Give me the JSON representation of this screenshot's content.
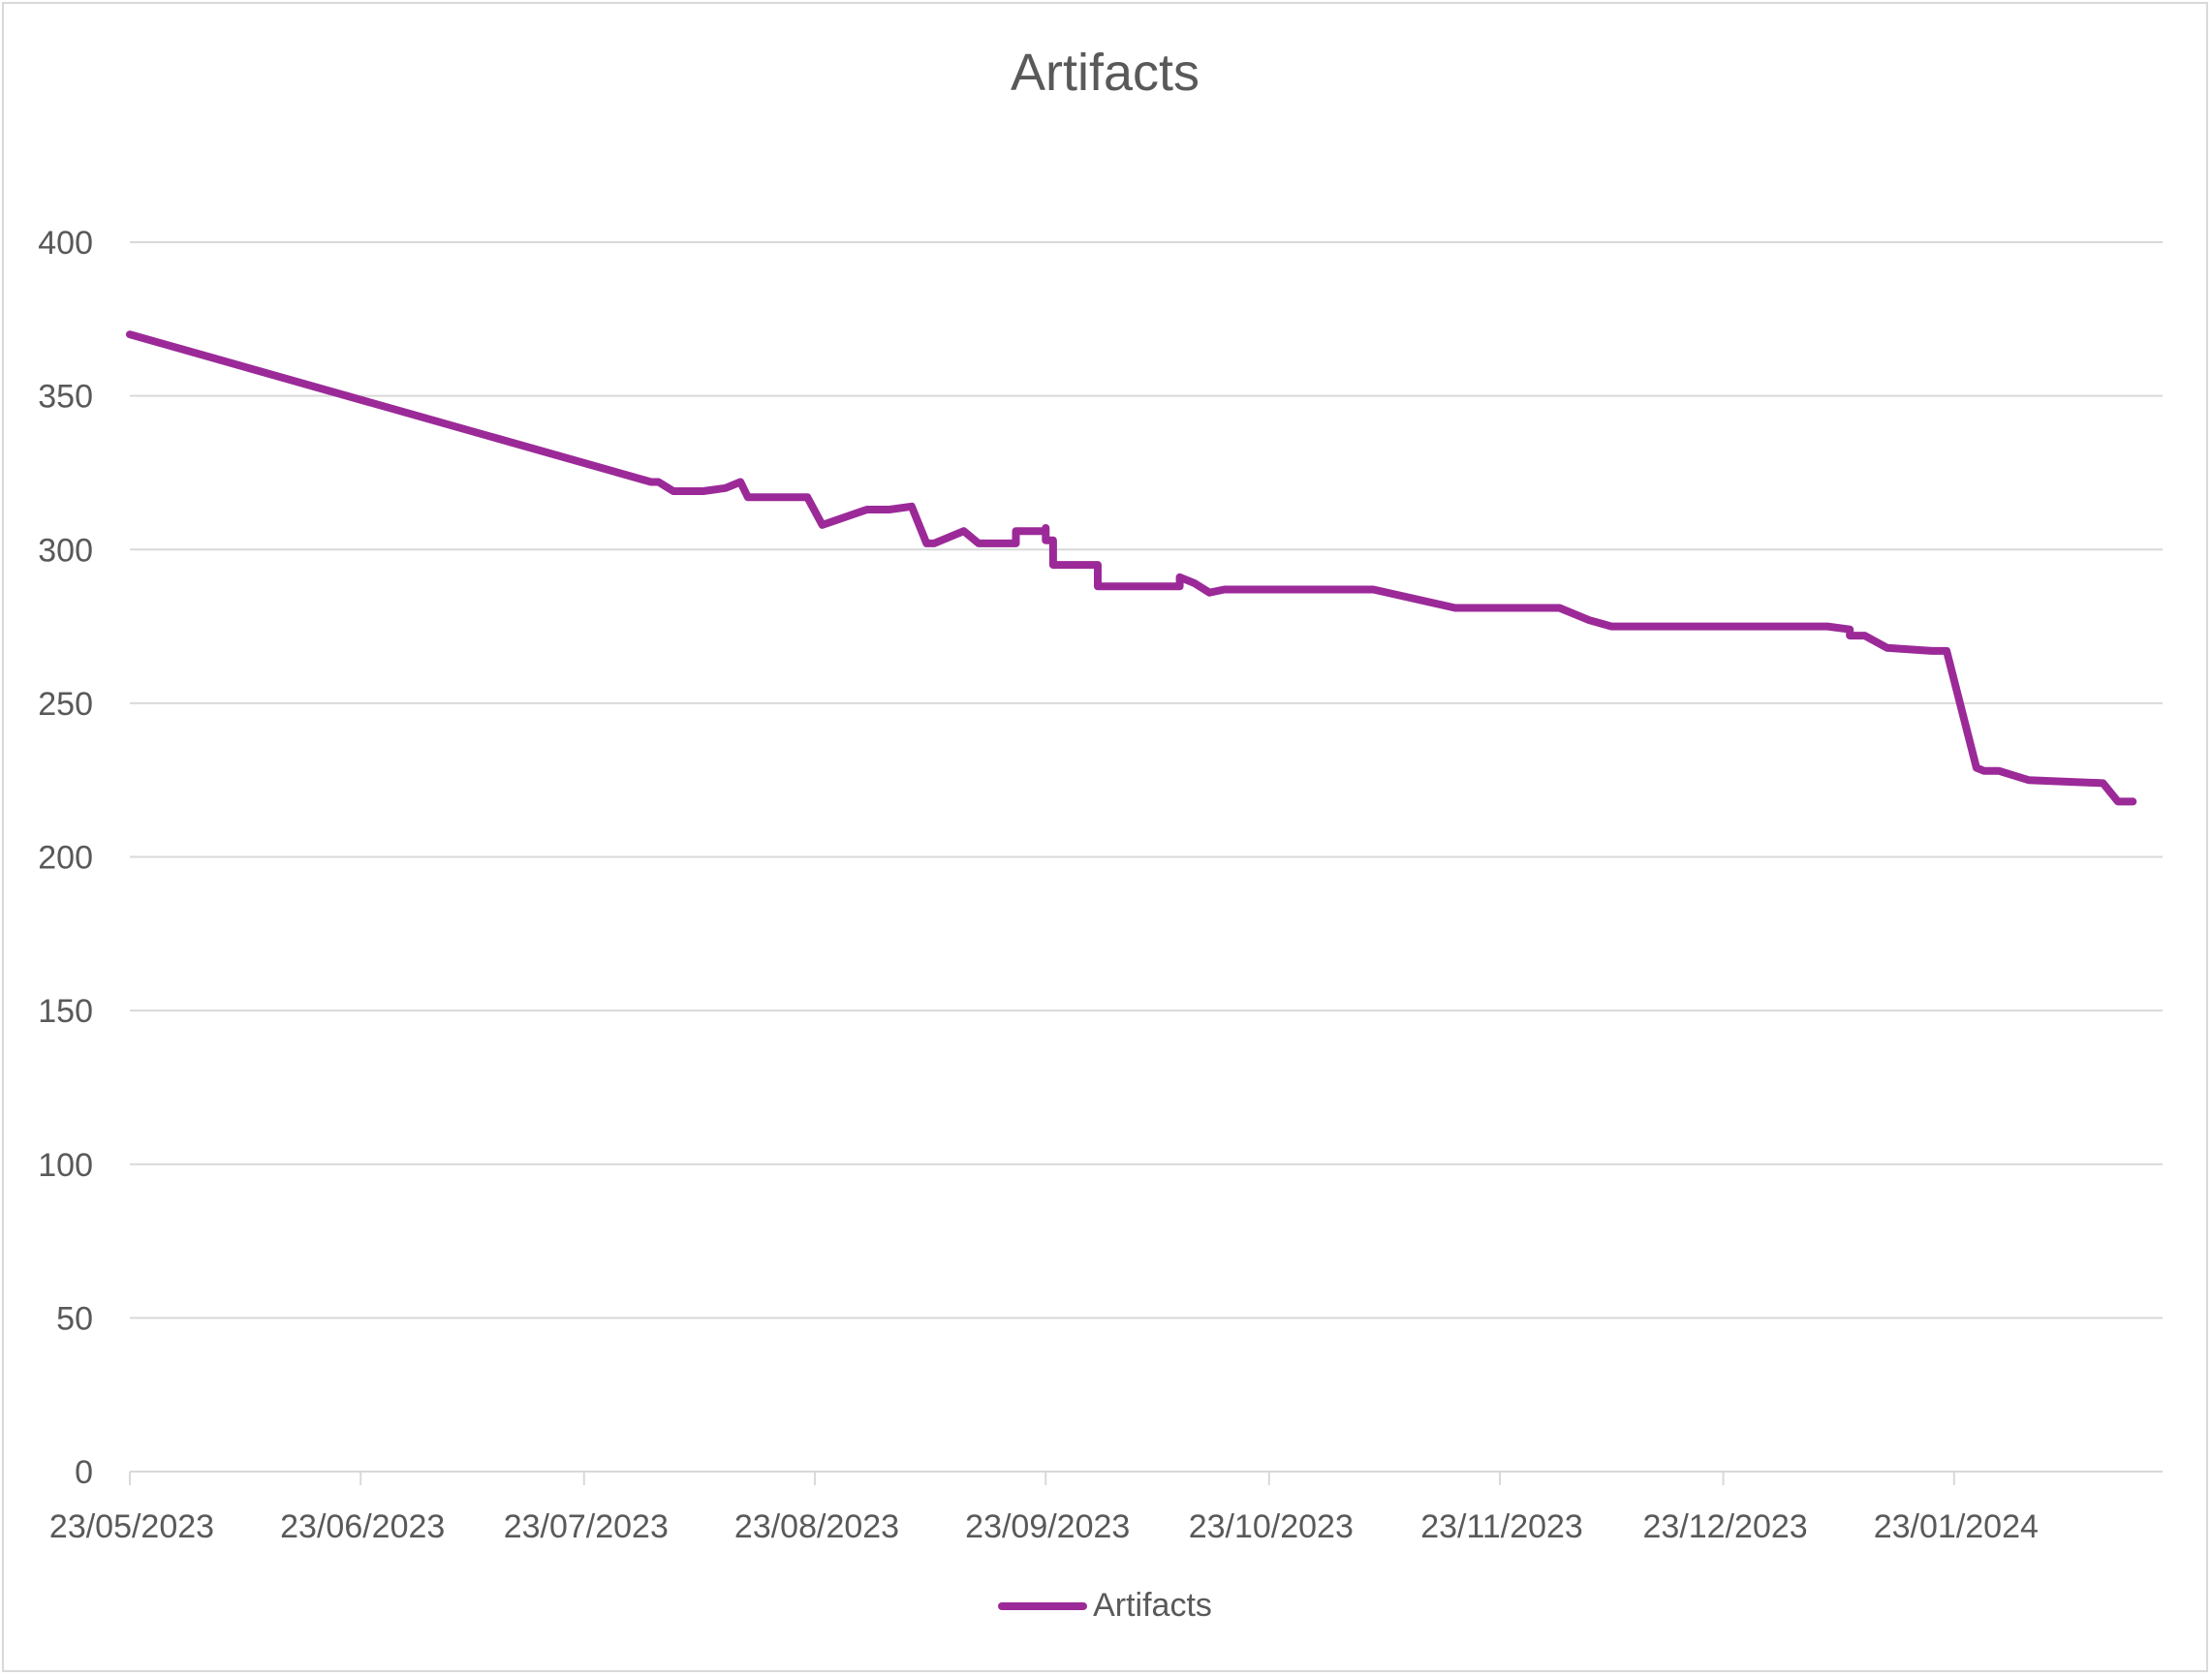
{
  "chart_data": {
    "type": "line",
    "title": "Artifacts",
    "xlabel": "",
    "ylabel": "",
    "ylim": [
      0,
      400
    ],
    "yticks": [
      "0",
      "50",
      "100",
      "150",
      "200",
      "250",
      "300",
      "350",
      "400"
    ],
    "xticks": [
      "23/05/2023",
      "23/06/2023",
      "23/07/2023",
      "23/08/2023",
      "23/09/2023",
      "23/10/2023",
      "23/11/2023",
      "23/12/2023",
      "23/01/2024"
    ],
    "xlim": [
      "2023-05-23",
      "2024-02-20"
    ],
    "grid": true,
    "legend": "bottom",
    "series": [
      {
        "name": "Artifacts",
        "color": "#9b2a98",
        "points": [
          [
            "2023-05-23",
            370
          ],
          [
            "2023-08-01",
            322
          ],
          [
            "2023-08-02",
            322
          ],
          [
            "2023-08-04",
            319
          ],
          [
            "2023-08-08",
            319
          ],
          [
            "2023-08-11",
            320
          ],
          [
            "2023-08-13",
            322
          ],
          [
            "2023-08-14",
            317
          ],
          [
            "2023-08-22",
            317
          ],
          [
            "2023-08-24",
            308
          ],
          [
            "2023-08-30",
            313
          ],
          [
            "2023-09-02",
            313
          ],
          [
            "2023-09-05",
            314
          ],
          [
            "2023-09-07",
            302
          ],
          [
            "2023-09-08",
            302
          ],
          [
            "2023-09-12",
            306
          ],
          [
            "2023-09-14",
            302
          ],
          [
            "2023-09-19",
            302
          ],
          [
            "2023-09-19",
            306
          ],
          [
            "2023-09-23",
            306
          ],
          [
            "2023-09-23",
            307
          ],
          [
            "2023-09-23",
            303
          ],
          [
            "2023-09-24",
            303
          ],
          [
            "2023-09-24",
            295
          ],
          [
            "2023-09-30",
            295
          ],
          [
            "2023-09-30",
            288
          ],
          [
            "2023-10-11",
            288
          ],
          [
            "2023-10-11",
            291
          ],
          [
            "2023-10-13",
            289
          ],
          [
            "2023-10-15",
            286
          ],
          [
            "2023-10-17",
            287
          ],
          [
            "2023-11-06",
            287
          ],
          [
            "2023-11-17",
            281
          ],
          [
            "2023-12-01",
            281
          ],
          [
            "2023-12-05",
            277
          ],
          [
            "2023-12-08",
            275
          ],
          [
            "2024-01-06",
            275
          ],
          [
            "2024-01-09",
            274
          ],
          [
            "2024-01-09",
            272
          ],
          [
            "2024-01-11",
            272
          ],
          [
            "2024-01-14",
            268
          ],
          [
            "2024-01-20",
            267
          ],
          [
            "2024-01-22",
            267
          ],
          [
            "2024-01-26",
            229
          ],
          [
            "2024-01-27",
            228
          ],
          [
            "2024-01-29",
            228
          ],
          [
            "2024-02-02",
            225
          ],
          [
            "2024-02-12",
            224
          ],
          [
            "2024-02-14",
            218
          ],
          [
            "2024-02-16",
            218
          ]
        ]
      }
    ]
  }
}
